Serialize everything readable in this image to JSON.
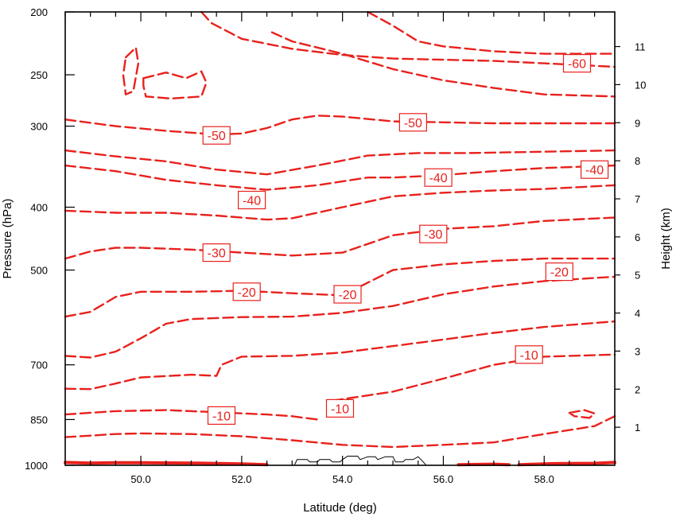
{
  "chart_data": {
    "type": "line",
    "subtype": "contour",
    "title": "",
    "xlabel": "Latitude (deg)",
    "ylabel_left": "Pressure (hPa)",
    "ylabel_right": "Height (km)",
    "xlim": [
      48.5,
      59.4
    ],
    "ylim_pressure": [
      1000,
      200
    ],
    "y_scale": "log",
    "x_ticks": [
      50,
      52,
      54,
      56,
      58
    ],
    "x_tick_labels": [
      "50.0",
      "52.0",
      "54.0",
      "56.0",
      "58.0"
    ],
    "y_left_ticks": [
      200,
      250,
      300,
      400,
      500,
      700,
      850,
      1000
    ],
    "y_left_tick_labels": [
      "200",
      "250",
      "300",
      "400",
      "500",
      "700",
      "850",
      "1000"
    ],
    "y_right_ticks": [
      1,
      2,
      3,
      4,
      5,
      6,
      7,
      8,
      9,
      10,
      11
    ],
    "y_right_tick_labels": [
      "1",
      "2",
      "3",
      "4",
      "5",
      "6",
      "7",
      "8",
      "9",
      "10",
      "11"
    ],
    "contour_color": "#e8211c",
    "terrain_color": "#000000",
    "grid": false,
    "contours": [
      {
        "level": 0,
        "style": "solid",
        "points": [
          [
            48.5,
            990
          ],
          [
            49.0,
            992
          ],
          [
            49.5,
            991
          ],
          [
            50.0,
            991
          ],
          [
            51.0,
            992
          ],
          [
            52.0,
            995
          ],
          [
            52.5,
            998
          ]
        ]
      },
      {
        "level": 0,
        "style": "solid",
        "points": [
          [
            56.3,
            998
          ],
          [
            57.0,
            996
          ],
          [
            57.3,
            998
          ]
        ]
      },
      {
        "level": 0,
        "style": "solid",
        "points": [
          [
            57.5,
            998
          ],
          [
            58.2,
            994
          ],
          [
            59.0,
            993
          ],
          [
            59.4,
            990
          ]
        ]
      },
      {
        "level": -5,
        "style": "dashed",
        "points": [
          [
            48.5,
            905
          ],
          [
            49.5,
            895
          ],
          [
            50.0,
            893
          ],
          [
            51.0,
            895
          ],
          [
            52.0,
            902
          ],
          [
            53.0,
            915
          ],
          [
            54.0,
            930
          ],
          [
            55.0,
            937
          ],
          [
            56.0,
            930
          ],
          [
            57.0,
            922
          ],
          [
            58.0,
            895
          ],
          [
            59.0,
            870
          ],
          [
            59.4,
            840
          ]
        ]
      },
      {
        "level": -10,
        "style": "dashed",
        "points": [
          [
            48.5,
            835
          ],
          [
            49.5,
            825
          ],
          [
            50.5,
            822
          ],
          [
            51.5,
            828
          ],
          [
            52.5,
            835
          ],
          [
            53.0,
            840
          ],
          [
            53.5,
            850
          ]
        ]
      },
      {
        "level": -10,
        "style": "dashed",
        "points": [
          [
            53.8,
            795
          ],
          [
            55.0,
            770
          ],
          [
            56.0,
            735
          ],
          [
            57.0,
            700
          ],
          [
            58.0,
            680
          ],
          [
            59.4,
            675
          ]
        ]
      },
      {
        "level": -15,
        "style": "dashed",
        "points": [
          [
            48.5,
            762
          ],
          [
            49.0,
            763
          ],
          [
            49.5,
            748
          ],
          [
            50.0,
            732
          ],
          [
            51.0,
            725
          ],
          [
            51.5,
            728
          ],
          [
            51.6,
            700
          ],
          [
            52.0,
            680
          ],
          [
            53.0,
            678
          ],
          [
            54.0,
            670
          ],
          [
            55.0,
            655
          ],
          [
            56.0,
            640
          ],
          [
            57.0,
            625
          ],
          [
            58.0,
            612
          ],
          [
            59.4,
            600
          ]
        ]
      },
      {
        "level": -15,
        "style": "dashed",
        "points": [
          [
            48.5,
            678
          ],
          [
            49.0,
            682
          ],
          [
            49.5,
            668
          ],
          [
            50.0,
            637
          ],
          [
            50.5,
            605
          ],
          [
            51.0,
            595
          ],
          [
            52.0,
            591
          ],
          [
            53.0,
            590
          ],
          [
            54.0,
            582
          ],
          [
            55.0,
            568
          ],
          [
            56.0,
            545
          ],
          [
            57.0,
            530
          ],
          [
            58.0,
            520
          ],
          [
            59.4,
            512
          ]
        ]
      },
      {
        "level": -20,
        "style": "dashed",
        "points": [
          [
            48.5,
            590
          ],
          [
            49.0,
            580
          ],
          [
            49.5,
            550
          ],
          [
            50.0,
            540
          ],
          [
            51.0,
            540
          ],
          [
            52.0,
            538
          ],
          [
            53.0,
            543
          ],
          [
            54.0,
            547
          ],
          [
            55.0,
            500
          ],
          [
            56.0,
            490
          ],
          [
            57.0,
            484
          ],
          [
            58.0,
            480
          ],
          [
            59.4,
            480
          ]
        ]
      },
      {
        "level": -30,
        "style": "dashed",
        "points": [
          [
            48.5,
            480
          ],
          [
            49.0,
            468
          ],
          [
            49.5,
            462
          ],
          [
            50.0,
            462
          ],
          [
            51.0,
            465
          ],
          [
            52.0,
            470
          ],
          [
            53.0,
            475
          ],
          [
            54.0,
            470
          ],
          [
            55.0,
            442
          ],
          [
            56.0,
            432
          ],
          [
            57.0,
            428
          ],
          [
            58.0,
            420
          ],
          [
            59.4,
            415
          ]
        ]
      },
      {
        "level": -35,
        "style": "dashed",
        "points": [
          [
            48.5,
            405
          ],
          [
            49.5,
            408
          ],
          [
            50.5,
            408
          ],
          [
            51.5,
            412
          ],
          [
            52.5,
            418
          ],
          [
            53.0,
            416
          ],
          [
            54.0,
            400
          ],
          [
            55.0,
            385
          ],
          [
            56.0,
            380
          ],
          [
            57.0,
            377
          ],
          [
            58.0,
            375
          ],
          [
            59.4,
            370
          ]
        ]
      },
      {
        "level": -40,
        "style": "dashed",
        "points": [
          [
            48.5,
            345
          ],
          [
            49.5,
            352
          ],
          [
            50.5,
            363
          ],
          [
            51.5,
            370
          ],
          [
            52.5,
            376
          ],
          [
            53.5,
            370
          ],
          [
            54.5,
            360
          ],
          [
            55.0,
            360
          ],
          [
            56.0,
            357
          ],
          [
            57.0,
            352
          ],
          [
            58.0,
            348
          ],
          [
            59.4,
            345
          ]
        ]
      },
      {
        "level": -45,
        "style": "dashed",
        "points": [
          [
            48.5,
            327
          ],
          [
            49.5,
            334
          ],
          [
            50.5,
            340
          ],
          [
            51.5,
            350
          ],
          [
            52.5,
            356
          ],
          [
            53.5,
            345
          ],
          [
            54.5,
            333
          ],
          [
            55.5,
            330
          ],
          [
            56.5,
            330
          ],
          [
            57.5,
            329
          ],
          [
            59.4,
            327
          ]
        ]
      },
      {
        "level": -50,
        "style": "dashed",
        "points": [
          [
            48.5,
            293
          ],
          [
            49.5,
            300
          ],
          [
            50.5,
            305
          ],
          [
            51.5,
            309
          ],
          [
            52.0,
            308
          ],
          [
            52.5,
            302
          ],
          [
            53.0,
            293
          ],
          [
            53.5,
            289
          ],
          [
            54.0,
            290
          ],
          [
            55.0,
            295
          ],
          [
            56.0,
            296
          ],
          [
            57.0,
            297
          ],
          [
            58.0,
            297
          ],
          [
            59.4,
            297
          ]
        ]
      },
      {
        "level": -55,
        "style": "dashed",
        "points": [
          [
            52.6,
            215
          ],
          [
            53.0,
            222
          ],
          [
            54.0,
            232
          ],
          [
            55.0,
            245
          ],
          [
            56.0,
            255
          ],
          [
            57.0,
            262
          ],
          [
            58.0,
            268
          ],
          [
            59.4,
            270
          ]
        ]
      },
      {
        "level": -60,
        "style": "dashed",
        "points": [
          [
            51.2,
            200
          ],
          [
            51.4,
            208
          ],
          [
            52.0,
            220
          ],
          [
            53.0,
            228
          ],
          [
            54.0,
            233
          ],
          [
            55.0,
            236
          ],
          [
            56.0,
            237
          ],
          [
            57.0,
            238
          ],
          [
            58.0,
            240
          ],
          [
            59.4,
            243
          ]
        ]
      },
      {
        "level": -60,
        "style": "dashed",
        "points": [
          [
            54.5,
            200
          ],
          [
            55.0,
            210
          ],
          [
            55.5,
            222
          ],
          [
            56.0,
            226
          ],
          [
            57.0,
            230
          ],
          [
            58.0,
            232
          ],
          [
            59.4,
            232
          ]
        ]
      },
      {
        "level": -50,
        "style": "dashed",
        "closed": true,
        "points": [
          [
            49.7,
            235
          ],
          [
            49.9,
            227
          ],
          [
            49.95,
            240
          ],
          [
            49.85,
            265
          ],
          [
            49.7,
            268
          ],
          [
            49.65,
            250
          ]
        ]
      },
      {
        "level": -50,
        "style": "dashed",
        "closed": true,
        "points": [
          [
            50.05,
            253
          ],
          [
            50.5,
            248
          ],
          [
            50.9,
            253
          ],
          [
            51.2,
            247
          ],
          [
            51.3,
            257
          ],
          [
            51.2,
            270
          ],
          [
            50.6,
            272
          ],
          [
            50.1,
            270
          ],
          [
            50.05,
            260
          ]
        ]
      },
      {
        "level": -10,
        "style": "dashed",
        "closed": true,
        "points": [
          [
            58.5,
            830
          ],
          [
            58.8,
            822
          ],
          [
            59.0,
            832
          ],
          [
            58.9,
            845
          ],
          [
            58.6,
            840
          ]
        ]
      }
    ],
    "contour_labels": [
      {
        "text": "-60",
        "lat": 58.65,
        "p": 240
      },
      {
        "text": "-50",
        "lat": 51.5,
        "p": 310
      },
      {
        "text": "-50",
        "lat": 55.4,
        "p": 296
      },
      {
        "text": "-40",
        "lat": 52.2,
        "p": 390
      },
      {
        "text": "-40",
        "lat": 55.9,
        "p": 360
      },
      {
        "text": "-40",
        "lat": 59.0,
        "p": 350
      },
      {
        "text": "-30",
        "lat": 51.5,
        "p": 470
      },
      {
        "text": "-30",
        "lat": 55.8,
        "p": 440
      },
      {
        "text": "-20",
        "lat": 52.1,
        "p": 540
      },
      {
        "text": "-20",
        "lat": 54.1,
        "p": 545
      },
      {
        "text": "-20",
        "lat": 58.3,
        "p": 503
      },
      {
        "text": "-10",
        "lat": 51.6,
        "p": 838
      },
      {
        "text": "-10",
        "lat": 53.95,
        "p": 817
      },
      {
        "text": "-10",
        "lat": 57.7,
        "p": 675
      }
    ],
    "terrain": [
      [
        [
          53.05,
          998
        ],
        [
          53.1,
          980
        ],
        [
          53.3,
          980
        ],
        [
          53.35,
          988
        ],
        [
          53.5,
          988
        ],
        [
          53.55,
          980
        ],
        [
          53.75,
          980
        ],
        [
          53.8,
          988
        ],
        [
          53.95,
          988
        ],
        [
          54.0,
          980
        ],
        [
          54.1,
          968
        ],
        [
          54.3,
          968
        ],
        [
          54.35,
          980
        ],
        [
          54.5,
          970
        ],
        [
          54.65,
          970
        ],
        [
          54.7,
          980
        ],
        [
          54.85,
          970
        ],
        [
          55.0,
          970
        ],
        [
          55.05,
          988
        ],
        [
          55.2,
          988
        ],
        [
          55.25,
          980
        ],
        [
          55.4,
          980
        ],
        [
          55.5,
          970
        ],
        [
          55.6,
          988
        ],
        [
          55.65,
          998
        ]
      ]
    ]
  }
}
